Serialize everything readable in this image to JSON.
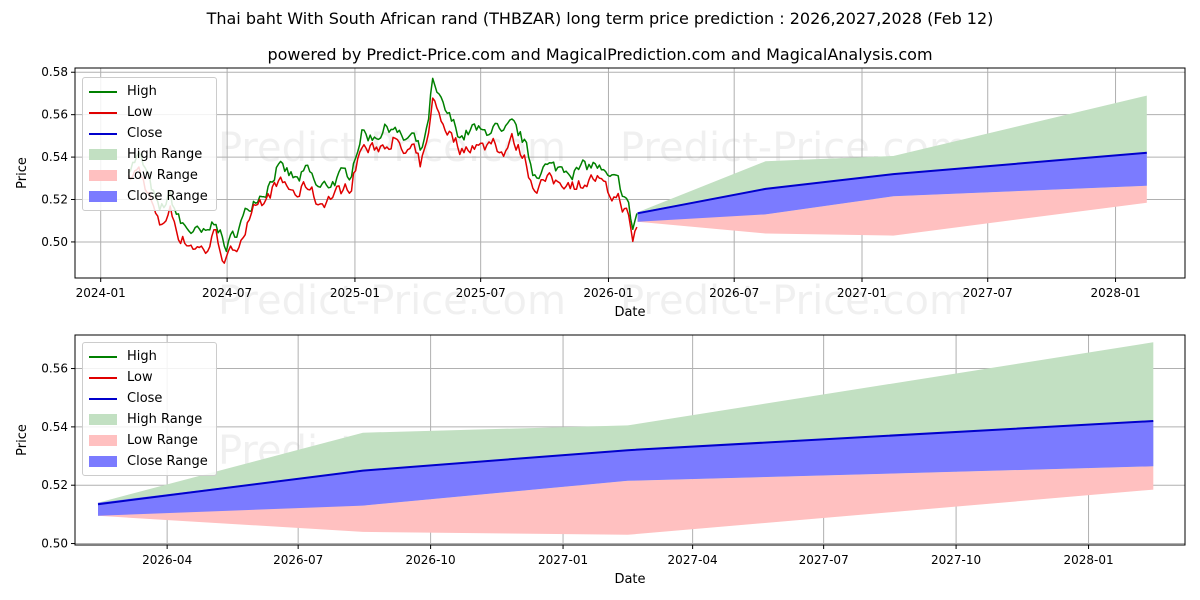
{
  "title": "Thai baht With South African rand (THBZAR) long term price prediction : 2026,2027,2028 (Feb 12)",
  "subtitle": "powered by Predict-Price.com and MagicalPrediction.com and MagicalAnalysis.com",
  "watermark": "Predict-Price.com",
  "colors": {
    "high": "#008000",
    "low": "#e00000",
    "close": "#0000cc",
    "high_range": "#c2e0c2",
    "low_range": "#ffc0c0",
    "close_range": "#7b7bff"
  },
  "legend": {
    "high": "High",
    "low": "Low",
    "close": "Close",
    "high_range": "High Range",
    "low_range": "Low Range",
    "close_range": "Close Range"
  },
  "chart_data": [
    {
      "type": "line",
      "title": "",
      "xlabel": "Date",
      "ylabel": "Price",
      "xlim": [
        "2023-11-25",
        "2028-04-10"
      ],
      "ylim": [
        0.483,
        0.582
      ],
      "xticks": [
        "2024-01",
        "2024-07",
        "2025-01",
        "2025-07",
        "2026-01",
        "2026-07",
        "2027-01",
        "2027-07",
        "2028-01"
      ],
      "yticks": [
        "0.50",
        "0.52",
        "0.54",
        "0.56",
        "0.58"
      ],
      "grid": true,
      "legend_position": "upper-left",
      "historical": {
        "close_anchors": [
          [
            "2024-02-10",
            0.532
          ],
          [
            "2024-02-25",
            0.537
          ],
          [
            "2024-03-10",
            0.526
          ],
          [
            "2024-03-25",
            0.51
          ],
          [
            "2024-04-10",
            0.518
          ],
          [
            "2024-04-25",
            0.505
          ],
          [
            "2024-05-15",
            0.501
          ],
          [
            "2024-06-01",
            0.499
          ],
          [
            "2024-06-15",
            0.508
          ],
          [
            "2024-06-28",
            0.493
          ],
          [
            "2024-07-10",
            0.499
          ],
          [
            "2024-07-25",
            0.508
          ],
          [
            "2024-08-10",
            0.518
          ],
          [
            "2024-08-25",
            0.521
          ],
          [
            "2024-09-10",
            0.531
          ],
          [
            "2024-09-25",
            0.529
          ],
          [
            "2024-10-10",
            0.525
          ],
          [
            "2024-10-25",
            0.53
          ],
          [
            "2024-11-10",
            0.521
          ],
          [
            "2024-11-25",
            0.524
          ],
          [
            "2024-12-10",
            0.527
          ],
          [
            "2024-12-25",
            0.529
          ],
          [
            "2025-01-10",
            0.548
          ],
          [
            "2025-01-25",
            0.546
          ],
          [
            "2025-02-10",
            0.549
          ],
          [
            "2025-02-25",
            0.552
          ],
          [
            "2025-03-10",
            0.544
          ],
          [
            "2025-03-25",
            0.546
          ],
          [
            "2025-04-05",
            0.539
          ],
          [
            "2025-04-15",
            0.548
          ],
          [
            "2025-04-22",
            0.571
          ],
          [
            "2025-05-05",
            0.561
          ],
          [
            "2025-05-20",
            0.553
          ],
          [
            "2025-06-05",
            0.546
          ],
          [
            "2025-06-20",
            0.55
          ],
          [
            "2025-07-05",
            0.547
          ],
          [
            "2025-07-20",
            0.552
          ],
          [
            "2025-08-01",
            0.545
          ],
          [
            "2025-08-15",
            0.551
          ],
          [
            "2025-09-01",
            0.544
          ],
          [
            "2025-09-15",
            0.529
          ],
          [
            "2025-10-01",
            0.532
          ],
          [
            "2025-10-15",
            0.531
          ],
          [
            "2025-11-01",
            0.532
          ],
          [
            "2025-11-15",
            0.53
          ],
          [
            "2025-12-01",
            0.532
          ],
          [
            "2025-12-15",
            0.533
          ],
          [
            "2026-01-01",
            0.525
          ],
          [
            "2026-01-15",
            0.524
          ],
          [
            "2026-01-28",
            0.516
          ],
          [
            "2026-02-05",
            0.503
          ],
          [
            "2026-02-12",
            0.511
          ]
        ]
      },
      "forecast": {
        "dates": [
          "2026-02-12",
          "2026-08-15",
          "2027-02-15",
          "2028-02-15"
        ],
        "close": [
          0.5135,
          0.525,
          0.532,
          0.542
        ],
        "high_range": [
          [
            0.5095,
            0.514
          ],
          [
            0.513,
            0.538
          ],
          [
            0.5215,
            0.5405
          ],
          [
            0.5265,
            0.569
          ]
        ],
        "low_range": [
          [
            0.5095,
            0.5105
          ],
          [
            0.504,
            0.513
          ],
          [
            0.503,
            0.5215
          ],
          [
            0.5185,
            0.5265
          ]
        ],
        "close_range": [
          [
            0.5095,
            0.514
          ],
          [
            0.513,
            0.525
          ],
          [
            0.5215,
            0.532
          ],
          [
            0.5265,
            0.542
          ]
        ]
      }
    },
    {
      "type": "area",
      "title": "",
      "xlabel": "Date",
      "ylabel": "Price",
      "xlim": [
        "2026-01-27",
        "2028-03-08"
      ],
      "ylim": [
        0.4995,
        0.5715
      ],
      "xticks": [
        "2026-04",
        "2026-07",
        "2026-10",
        "2027-01",
        "2027-04",
        "2027-07",
        "2027-10",
        "2028-01"
      ],
      "yticks": [
        "0.50",
        "0.52",
        "0.54",
        "0.56"
      ],
      "grid": true,
      "legend_position": "upper-left",
      "forecast": {
        "dates": [
          "2026-02-12",
          "2026-08-15",
          "2027-02-15",
          "2028-02-15"
        ],
        "close": [
          0.5135,
          0.525,
          0.532,
          0.542
        ],
        "high_range": [
          [
            0.5095,
            0.514
          ],
          [
            0.513,
            0.538
          ],
          [
            0.5215,
            0.5405
          ],
          [
            0.5265,
            0.569
          ]
        ],
        "low_range": [
          [
            0.5095,
            0.5105
          ],
          [
            0.504,
            0.513
          ],
          [
            0.503,
            0.5215
          ],
          [
            0.5185,
            0.5265
          ]
        ],
        "close_range": [
          [
            0.5095,
            0.514
          ],
          [
            0.513,
            0.525
          ],
          [
            0.5215,
            0.532
          ],
          [
            0.5265,
            0.542
          ]
        ]
      }
    }
  ]
}
